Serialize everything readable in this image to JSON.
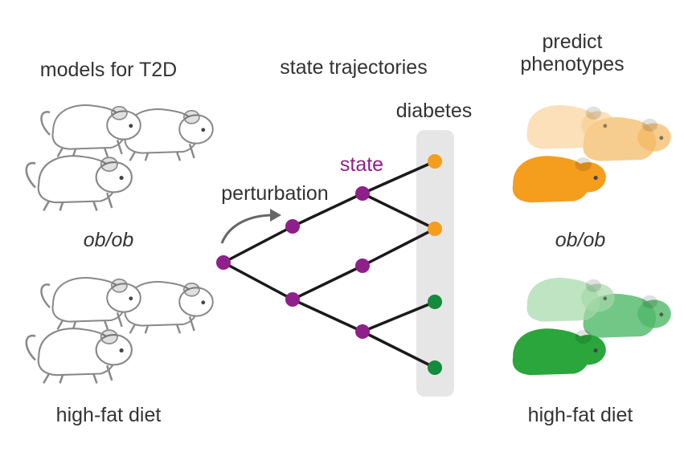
{
  "left": {
    "title": "models for T2D",
    "labels": [
      "ob/ob",
      "high-fat diet"
    ]
  },
  "middle": {
    "title": "state trajectories",
    "perturbation": "perturbation",
    "state": "state",
    "outcome": "diabetes"
  },
  "right": {
    "title": [
      "predict",
      "phenotypes"
    ],
    "labels": [
      "ob/ob",
      "high-fat diet"
    ]
  }
}
